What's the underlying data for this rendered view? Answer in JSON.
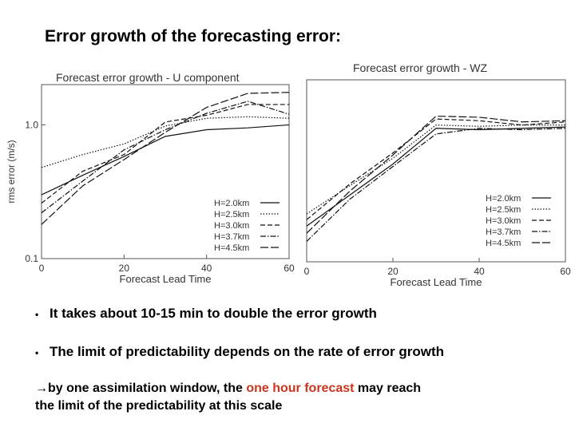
{
  "slide": {
    "title": "Error growth of the forecasting error:",
    "bullets": [
      "It takes about 10-15 min to double the error growth",
      "The limit of predictability depends on the rate of error growth"
    ],
    "bullet_symbol": "•",
    "conclusion": {
      "arrow": "→",
      "part1": "by one assimilation window, the ",
      "highlight": "one hour forecast",
      "part2": " may reach",
      "line2": "the limit of the predictability at this scale",
      "highlight_color": "#c8361f"
    }
  },
  "chart_data": [
    {
      "type": "line",
      "title": "Forecast error growth - U component",
      "xlabel": "Forecast Lead Time",
      "ylabel": "rms error (m/s)",
      "xlim": [
        0,
        60
      ],
      "ylim": [
        0.1,
        2.0
      ],
      "yscale": "log",
      "x_ticks": [
        "0",
        "20",
        "40",
        "60"
      ],
      "y_ticks": [
        "1.0",
        "0.1"
      ],
      "grid": false,
      "legend_position": "bottom-right",
      "series": [
        {
          "name": "H=2.0km",
          "dash": "solid",
          "x": [
            0,
            10,
            20,
            30,
            40,
            50,
            60
          ],
          "y": [
            0.3,
            0.42,
            0.58,
            0.82,
            0.92,
            0.95,
            1.0
          ]
        },
        {
          "name": "H=2.5km",
          "dash": "dotted",
          "x": [
            0,
            10,
            20,
            30,
            40,
            50,
            60
          ],
          "y": [
            0.48,
            0.6,
            0.72,
            0.98,
            1.12,
            1.15,
            1.12
          ]
        },
        {
          "name": "H=3.0km",
          "dash": "dashed",
          "x": [
            0,
            10,
            20,
            30,
            40,
            50,
            60
          ],
          "y": [
            0.26,
            0.45,
            0.6,
            1.05,
            1.18,
            1.42,
            1.42
          ]
        },
        {
          "name": "H=3.7km",
          "dash": "dashdot",
          "x": [
            0,
            10,
            20,
            30,
            40,
            50,
            60
          ],
          "y": [
            0.22,
            0.38,
            0.65,
            0.92,
            1.22,
            1.5,
            1.2
          ]
        },
        {
          "name": "H=4.5km",
          "dash": "longdash",
          "x": [
            0,
            10,
            20,
            30,
            40,
            50,
            60
          ],
          "y": [
            0.18,
            0.35,
            0.55,
            0.88,
            1.35,
            1.72,
            1.75
          ]
        }
      ]
    },
    {
      "type": "line",
      "title": "Forecast error growth - WZ",
      "xlabel": "Forecast Lead Time",
      "ylabel": "",
      "xlim": [
        0,
        60
      ],
      "ylim": [
        0.1,
        2.0
      ],
      "yscale": "log",
      "x_ticks": [
        "0",
        "20",
        "40",
        "60"
      ],
      "y_ticks": [],
      "grid": false,
      "legend_position": "bottom-right",
      "series": [
        {
          "name": "H=2.0km",
          "dash": "solid",
          "x": [
            0,
            10,
            20,
            30,
            40,
            50,
            60
          ],
          "y": [
            0.18,
            0.3,
            0.5,
            0.9,
            0.88,
            0.9,
            0.92
          ]
        },
        {
          "name": "H=2.5km",
          "dash": "dotted",
          "x": [
            0,
            10,
            20,
            30,
            40,
            50,
            60
          ],
          "y": [
            0.22,
            0.35,
            0.55,
            0.95,
            0.93,
            0.95,
            0.95
          ]
        },
        {
          "name": "H=3.0km",
          "dash": "dashed",
          "x": [
            0,
            10,
            20,
            30,
            40,
            50,
            60
          ],
          "y": [
            0.2,
            0.36,
            0.6,
            1.05,
            1.02,
            0.95,
            1.0
          ]
        },
        {
          "name": "H=3.7km",
          "dash": "dashdot",
          "x": [
            0,
            10,
            20,
            30,
            40,
            50,
            60
          ],
          "y": [
            0.14,
            0.28,
            0.48,
            0.82,
            0.9,
            0.88,
            0.9
          ]
        },
        {
          "name": "H=4.5km",
          "dash": "longdash",
          "x": [
            0,
            10,
            20,
            30,
            40,
            50,
            60
          ],
          "y": [
            0.16,
            0.32,
            0.58,
            1.1,
            1.08,
            1.0,
            1.02
          ]
        }
      ]
    }
  ]
}
